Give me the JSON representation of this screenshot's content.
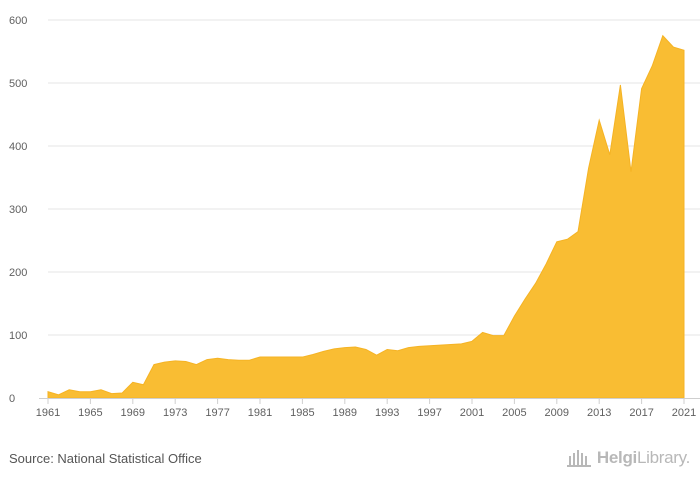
{
  "chart_data": {
    "type": "area",
    "title": "",
    "xlabel": "",
    "ylabel": "",
    "ylim": [
      0,
      600
    ],
    "yticks": [
      0,
      100,
      200,
      300,
      400,
      500,
      600
    ],
    "xlim": [
      1961,
      2021
    ],
    "xticks": [
      1961,
      1965,
      1969,
      1973,
      1977,
      1981,
      1985,
      1989,
      1993,
      1997,
      2001,
      2005,
      2009,
      2013,
      2017,
      2021
    ],
    "color": "#f9bd33",
    "x": [
      1961,
      1962,
      1963,
      1964,
      1965,
      1966,
      1967,
      1968,
      1969,
      1970,
      1971,
      1972,
      1973,
      1974,
      1975,
      1976,
      1977,
      1978,
      1979,
      1980,
      1981,
      1982,
      1983,
      1984,
      1985,
      1986,
      1987,
      1988,
      1989,
      1990,
      1991,
      1992,
      1993,
      1994,
      1995,
      1996,
      1997,
      1998,
      1999,
      2000,
      2001,
      2002,
      2003,
      2004,
      2005,
      2006,
      2007,
      2008,
      2009,
      2010,
      2011,
      2012,
      2013,
      2014,
      2015,
      2016,
      2017,
      2018,
      2019,
      2020,
      2021
    ],
    "values": [
      10,
      5,
      13,
      10,
      10,
      13,
      7,
      8,
      25,
      21,
      53,
      57,
      59,
      58,
      53,
      61,
      63,
      61,
      60,
      60,
      65,
      65,
      65,
      65,
      65,
      69,
      74,
      78,
      80,
      81,
      77,
      68,
      77,
      75,
      80,
      82,
      83,
      84,
      85,
      86,
      90,
      104,
      99,
      99,
      130,
      157,
      182,
      213,
      248,
      252,
      264,
      365,
      441,
      386,
      497,
      359,
      491,
      527,
      575,
      557,
      552
    ]
  },
  "footer": {
    "source": "Source: National Statistical Office",
    "logo_brand": "Helgi",
    "logo_suffix": "Library."
  }
}
